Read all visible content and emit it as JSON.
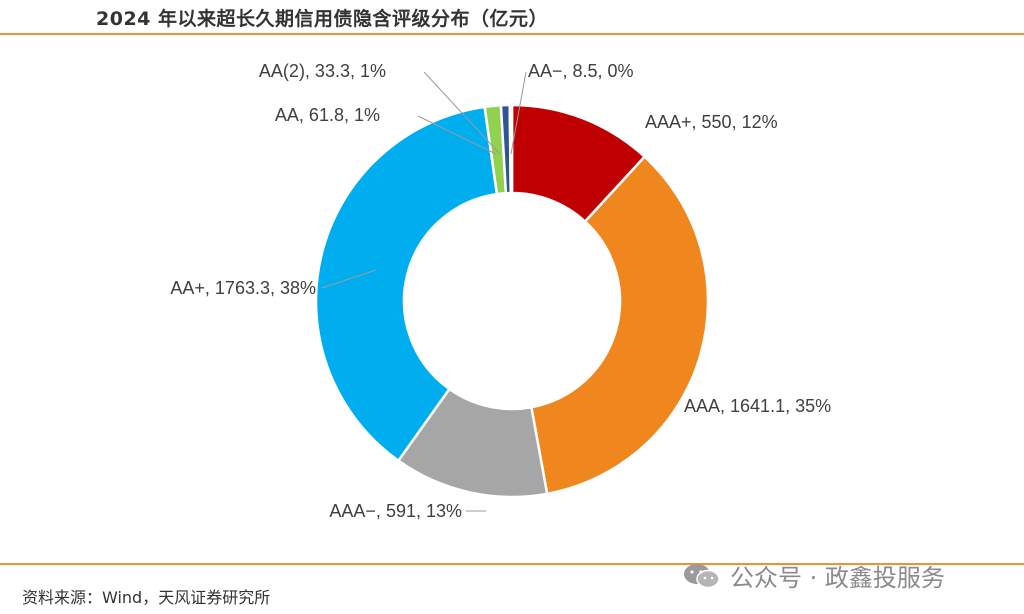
{
  "header": {
    "title": "2024 年以来超长久期信用债隐含评级分布（亿元）"
  },
  "footer": {
    "source": "资料来源：Wind，天风证券研究所",
    "watermark": "公众号 · 政鑫投服务",
    "watermark_icon": "wechat-icon"
  },
  "chart_data": {
    "type": "pie",
    "title": "2024 年以来超长久期信用债隐含评级分布（亿元）",
    "donut": true,
    "slices": [
      {
        "name": "AAA+",
        "value": 550,
        "pct": "12%",
        "label": "AAA+, 550, 12%",
        "color": "#c00000"
      },
      {
        "name": "AAA",
        "value": 1641.1,
        "pct": "35%",
        "label": "AAA, 1641.1, 35%",
        "color": "#f0861e"
      },
      {
        "name": "AAA-",
        "value": 591,
        "pct": "13%",
        "label": "AAA−, 591, 13%",
        "color": "#a6a6a6"
      },
      {
        "name": "AA+",
        "value": 1763.3,
        "pct": "38%",
        "label": "AA+, 1763.3, 38%",
        "color": "#00aeef"
      },
      {
        "name": "AA",
        "value": 61.8,
        "pct": "1%",
        "label": "AA, 61.8, 1%",
        "color": "#92d050"
      },
      {
        "name": "AA(2)",
        "value": 33.3,
        "pct": "1%",
        "label": "AA(2), 33.3, 1%",
        "color": "#2f5597"
      },
      {
        "name": "AA-",
        "value": 8.5,
        "pct": "0%",
        "label": "AA−, 8.5, 0%",
        "color": "#002060"
      }
    ]
  }
}
